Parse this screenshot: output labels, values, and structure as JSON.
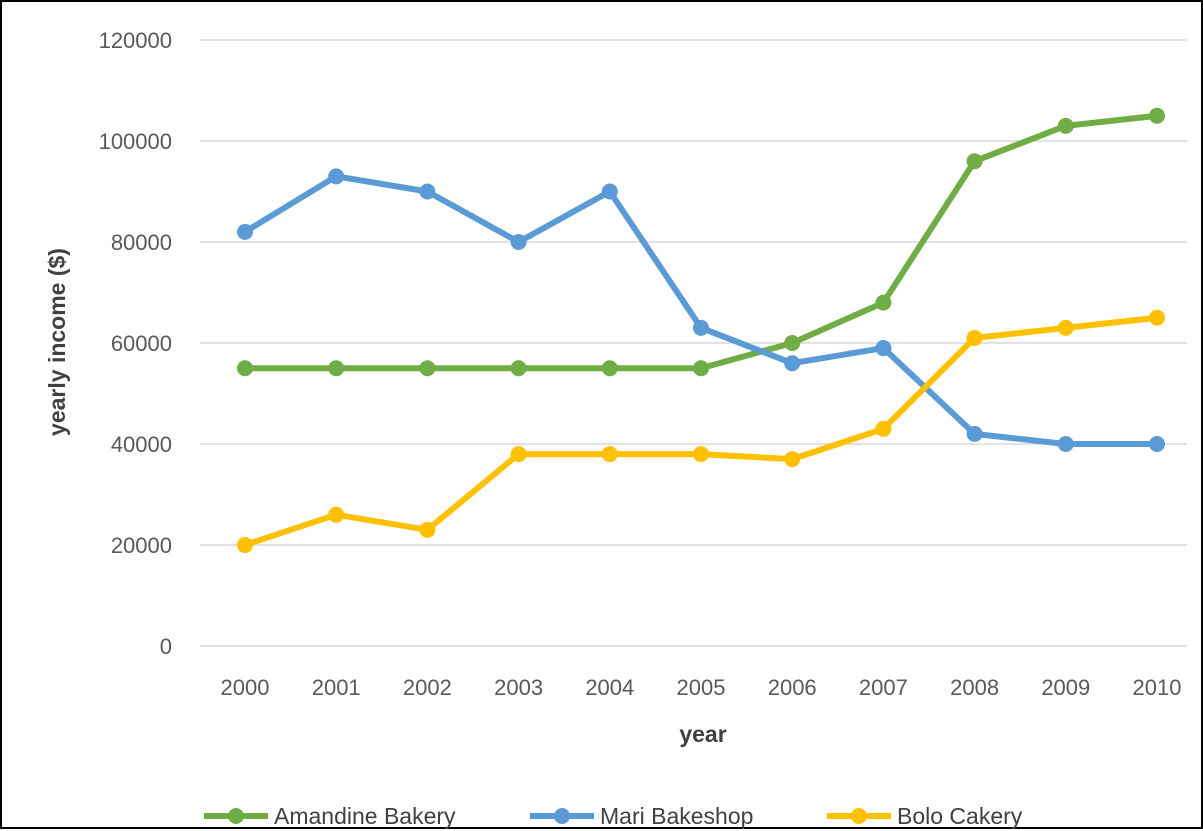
{
  "chart_data": {
    "type": "line",
    "title": "",
    "xlabel": "year",
    "ylabel": "yearly income ($)",
    "categories": [
      "2000",
      "2001",
      "2002",
      "2003",
      "2004",
      "2005",
      "2006",
      "2007",
      "2008",
      "2009",
      "2010"
    ],
    "ylim": [
      0,
      120000
    ],
    "yticks": [
      "0",
      "20000",
      "40000",
      "60000",
      "80000",
      "100000",
      "120000"
    ],
    "grid": true,
    "legend_position": "bottom",
    "series": [
      {
        "name": "Amandine Bakery",
        "color": "#70ad47",
        "values": [
          55000,
          55000,
          55000,
          55000,
          55000,
          55000,
          60000,
          68000,
          96000,
          103000,
          105000
        ]
      },
      {
        "name": "Mari Bakeshop",
        "color": "#5b9bd5",
        "values": [
          82000,
          93000,
          90000,
          80000,
          90000,
          63000,
          56000,
          59000,
          42000,
          40000,
          40000
        ]
      },
      {
        "name": "Bolo Cakery",
        "color": "#ffc000",
        "values": [
          20000,
          26000,
          23000,
          38000,
          38000,
          38000,
          37000,
          43000,
          61000,
          63000,
          65000
        ]
      }
    ]
  }
}
